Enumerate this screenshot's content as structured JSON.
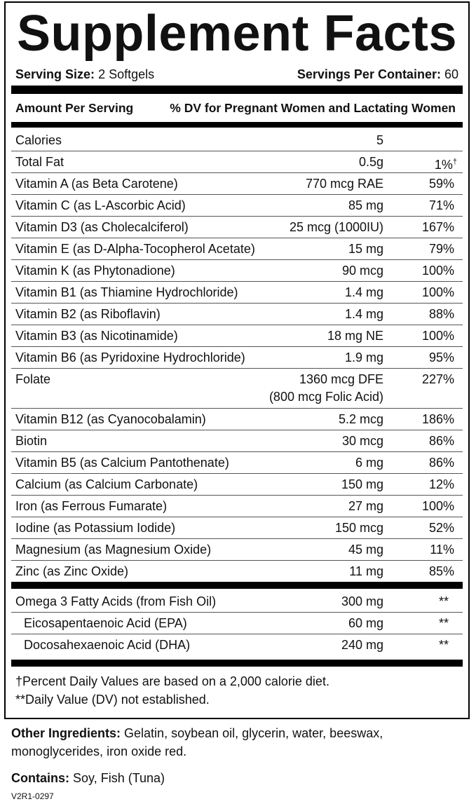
{
  "header": {
    "title": "Supplement Facts",
    "serving_size_label": "Serving Size:",
    "serving_size_value": "2 Softgels",
    "servings_label": "Servings Per Container:",
    "servings_value": "60"
  },
  "column_headers": {
    "amount": "Amount Per Serving",
    "dv": "% DV for Pregnant Women and Lactating Women"
  },
  "rows": [
    {
      "name": "Calories",
      "amount": "5",
      "dv": ""
    },
    {
      "name": "Total Fat",
      "amount": "0.5g",
      "dv": "1%",
      "dv_mark": "†"
    },
    {
      "name": "Vitamin A (as Beta Carotene)",
      "amount": "770 mcg RAE",
      "dv": "59%"
    },
    {
      "name": "Vitamin C (as L-Ascorbic Acid)",
      "amount": "85 mg",
      "dv": "71%"
    },
    {
      "name": "Vitamin D3 (as Cholecalciferol)",
      "amount": "25 mcg (1000IU)",
      "dv": "167%"
    },
    {
      "name": "Vitamin E (as D-Alpha-Tocopherol Acetate)",
      "amount": "15 mg",
      "dv": "79%"
    },
    {
      "name": "Vitamin K (as Phytonadione)",
      "amount": "90 mcg",
      "dv": "100%"
    },
    {
      "name": "Vitamin B1 (as Thiamine Hydrochloride)",
      "amount": "1.4 mg",
      "dv": "100%"
    },
    {
      "name": "Vitamin B2 (as Riboflavin)",
      "amount": "1.4 mg",
      "dv": "88%"
    },
    {
      "name": "Vitamin B3 (as Nicotinamide)",
      "amount": "18 mg NE",
      "dv": "100%"
    },
    {
      "name": "Vitamin B6 (as Pyridoxine Hydrochloride)",
      "amount": "1.9 mg",
      "dv": "95%"
    },
    {
      "name": "Folate",
      "amount": "1360 mcg DFE",
      "amount_note": "(800 mcg Folic Acid)",
      "dv": "227%"
    },
    {
      "name": "Vitamin B12 (as Cyanocobalamin)",
      "amount": "5.2 mcg",
      "dv": "186%"
    },
    {
      "name": "Biotin",
      "amount": "30 mcg",
      "dv": "86%"
    },
    {
      "name": "Vitamin B5 (as Calcium Pantothenate)",
      "amount": "6 mg",
      "dv": "86%"
    },
    {
      "name": "Calcium (as Calcium Carbonate)",
      "amount": "150 mg",
      "dv": "12%"
    },
    {
      "name": "Iron (as Ferrous Fumarate)",
      "amount": "27 mg",
      "dv": "100%"
    },
    {
      "name": "Iodine (as Potassium Iodide)",
      "amount": "150 mcg",
      "dv": "52%"
    },
    {
      "name": "Magnesium (as Magnesium Oxide)",
      "amount": "45 mg",
      "dv": "11%"
    },
    {
      "name": "Zinc (as Zinc Oxide)",
      "amount": "11 mg",
      "dv": "85%"
    }
  ],
  "omega_rows": [
    {
      "name": "Omega 3 Fatty Acids (from Fish Oil)",
      "amount": "300 mg",
      "dv": "**"
    },
    {
      "name": "Eicosapentaenoic Acid (EPA)",
      "amount": "60 mg",
      "dv": "**",
      "indent": true
    },
    {
      "name": "Docosahexaenoic Acid (DHA)",
      "amount": "240 mg",
      "dv": "**",
      "indent": true
    }
  ],
  "footnotes": [
    "†Percent Daily Values are based on a 2,000 calorie diet.",
    "**Daily Value (DV) not established."
  ],
  "other_ingredients": {
    "label": "Other Ingredients:",
    "text": "Gelatin, soybean oil, glycerin, water, beeswax, monoglycerides, iron oxide red."
  },
  "contains": {
    "label": "Contains:",
    "text": "Soy, Fish (Tuna)"
  },
  "code": "V2R1-0297"
}
